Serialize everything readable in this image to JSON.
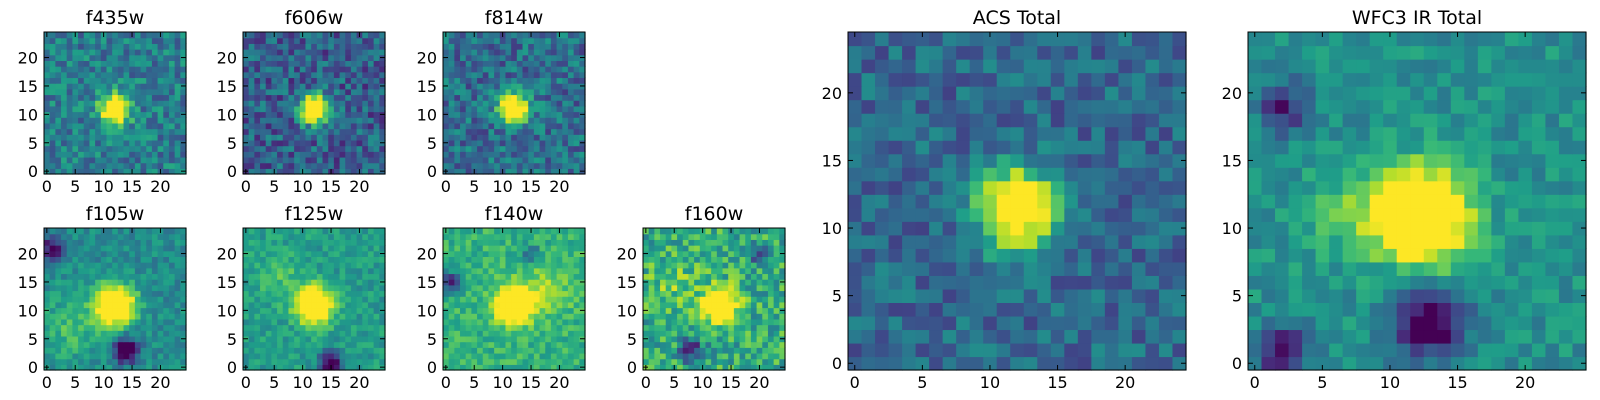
{
  "chart_data": {
    "type": "heatmap",
    "colormap": "viridis",
    "value_range": [
      0,
      1
    ],
    "description_note": "Pixel values are a coarse reading of the 25x25 image stamps: background noise with a bright central source near (12, 11).",
    "panels": [
      {
        "id": "f435w",
        "title": "f435w",
        "xlim": [
          -0.5,
          24.5
        ],
        "ylim": [
          -0.5,
          24.5
        ],
        "xticks": [
          0,
          5,
          10,
          15,
          20
        ],
        "yticks": [
          0,
          5,
          10,
          15,
          20
        ],
        "background_level": 0.42,
        "noise": 0.36,
        "source": {
          "x": 12,
          "y": 11,
          "radius": 1.8,
          "peak": 1.0
        },
        "faint_blobs": [],
        "dark_patches": []
      },
      {
        "id": "f606w",
        "title": "f606w",
        "xlim": [
          -0.5,
          24.5
        ],
        "ylim": [
          -0.5,
          24.5
        ],
        "xticks": [
          0,
          5,
          10,
          15,
          20
        ],
        "yticks": [
          0,
          5,
          10,
          15,
          20
        ],
        "background_level": 0.3,
        "noise": 0.4,
        "source": {
          "x": 12,
          "y": 11,
          "radius": 1.8,
          "peak": 1.0
        },
        "faint_blobs": [],
        "dark_patches": []
      },
      {
        "id": "f814w",
        "title": "f814w",
        "xlim": [
          -0.5,
          24.5
        ],
        "ylim": [
          -0.5,
          24.5
        ],
        "xticks": [
          0,
          5,
          10,
          15,
          20
        ],
        "yticks": [
          0,
          5,
          10,
          15,
          20
        ],
        "background_level": 0.36,
        "noise": 0.38,
        "source": {
          "x": 12,
          "y": 11,
          "radius": 1.8,
          "peak": 1.0
        },
        "faint_blobs": [],
        "dark_patches": []
      },
      {
        "id": "f105w",
        "title": "f105w",
        "xlim": [
          -0.5,
          24.5
        ],
        "ylim": [
          -0.5,
          24.5
        ],
        "xticks": [
          0,
          5,
          10,
          15,
          20
        ],
        "yticks": [
          0,
          5,
          10,
          15,
          20
        ],
        "background_level": 0.48,
        "noise": 0.22,
        "source": {
          "x": 12,
          "y": 11,
          "radius": 2.4,
          "peak": 1.0
        },
        "faint_blobs": [
          {
            "x": 4,
            "y": 7,
            "radius": 4,
            "peak": 0.2
          }
        ],
        "dark_patches": [
          {
            "x": 14,
            "y": 3,
            "radius": 1.5,
            "depth": 0.7
          },
          {
            "x": 1,
            "y": 21,
            "radius": 1.5,
            "depth": 0.5
          }
        ]
      },
      {
        "id": "f125w",
        "title": "f125w",
        "xlim": [
          -0.5,
          24.5
        ],
        "ylim": [
          -0.5,
          24.5
        ],
        "xticks": [
          0,
          5,
          10,
          15,
          20
        ],
        "yticks": [
          0,
          5,
          10,
          15,
          20
        ],
        "background_level": 0.55,
        "noise": 0.22,
        "source": {
          "x": 12,
          "y": 11,
          "radius": 2.2,
          "peak": 0.95
        },
        "faint_blobs": [
          {
            "x": 6,
            "y": 16,
            "radius": 3,
            "peak": 0.15
          }
        ],
        "dark_patches": [
          {
            "x": 15,
            "y": 1,
            "radius": 1.4,
            "depth": 0.7
          }
        ]
      },
      {
        "id": "f140w",
        "title": "f140w",
        "xlim": [
          -0.5,
          24.5
        ],
        "ylim": [
          -0.5,
          24.5
        ],
        "xticks": [
          0,
          5,
          10,
          15,
          20
        ],
        "yticks": [
          0,
          5,
          10,
          15,
          20
        ],
        "background_level": 0.64,
        "noise": 0.24,
        "source": {
          "x": 12,
          "y": 11,
          "radius": 2.2,
          "peak": 0.98
        },
        "faint_blobs": [
          {
            "x": 18,
            "y": 14,
            "radius": 3,
            "peak": 0.2
          }
        ],
        "dark_patches": [
          {
            "x": 1,
            "y": 15,
            "radius": 1.3,
            "depth": 0.6
          },
          {
            "x": 15,
            "y": 20,
            "radius": 1.2,
            "depth": 0.3
          }
        ]
      },
      {
        "id": "f160w",
        "title": "f160w",
        "xlim": [
          -0.5,
          24.5
        ],
        "ylim": [
          -0.5,
          24.5
        ],
        "xticks": [
          0,
          5,
          10,
          15,
          20
        ],
        "yticks": [
          0,
          5,
          10,
          15,
          20
        ],
        "background_level": 0.62,
        "noise": 0.4,
        "source": {
          "x": 13,
          "y": 11,
          "radius": 2.0,
          "peak": 0.95
        },
        "faint_blobs": [
          {
            "x": 5,
            "y": 15,
            "radius": 3,
            "peak": 0.15
          }
        ],
        "dark_patches": [
          {
            "x": 8,
            "y": 3,
            "radius": 1.5,
            "depth": 0.5
          },
          {
            "x": 20,
            "y": 20,
            "radius": 1.2,
            "depth": 0.4
          }
        ]
      },
      {
        "id": "acs_total",
        "title": "ACS Total",
        "xlim": [
          -0.5,
          24.5
        ],
        "ylim": [
          -0.5,
          24.5
        ],
        "xticks": [
          0,
          5,
          10,
          15,
          20
        ],
        "yticks": [
          0,
          5,
          10,
          15,
          20
        ],
        "background_level": 0.34,
        "noise": 0.3,
        "source": {
          "x": 12,
          "y": 11.5,
          "radius": 2.0,
          "peak": 1.0
        },
        "faint_blobs": [],
        "dark_patches": []
      },
      {
        "id": "wfc3_total",
        "title": "WFC3 IR Total",
        "xlim": [
          -0.5,
          24.5
        ],
        "ylim": [
          -0.5,
          24.5
        ],
        "xticks": [
          0,
          5,
          10,
          15,
          20
        ],
        "yticks": [
          0,
          5,
          10,
          15,
          20
        ],
        "background_level": 0.5,
        "noise": 0.22,
        "source": {
          "x": 12.5,
          "y": 11,
          "radius": 2.4,
          "peak": 1.0
        },
        "faint_blobs": [
          {
            "x": 7,
            "y": 11,
            "radius": 2.5,
            "peak": 0.2
          }
        ],
        "dark_patches": [
          {
            "x": 13,
            "y": 3,
            "radius": 1.8,
            "depth": 0.6
          },
          {
            "x": 2,
            "y": 1,
            "radius": 1.4,
            "depth": 0.5
          },
          {
            "x": 2,
            "y": 19,
            "radius": 1.2,
            "depth": 0.5
          }
        ]
      }
    ]
  }
}
